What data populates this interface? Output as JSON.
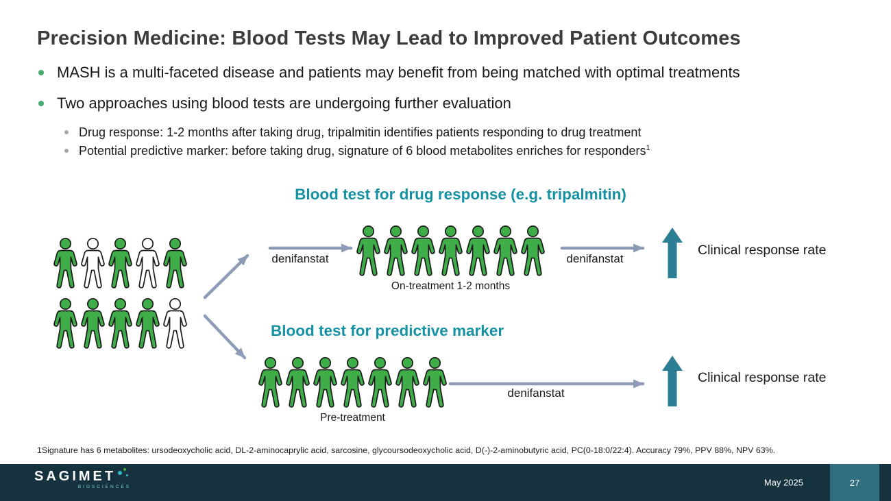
{
  "slide": {
    "title": "Precision Medicine: Blood Tests May Lead to Improved Patient Outcomes",
    "bullets": [
      {
        "text": "MASH is a multi-faceted disease and patients may benefit from being matched with optimal treatments"
      },
      {
        "text": "Two approaches using blood tests are undergoing further evaluation"
      }
    ],
    "sub_bullets": [
      {
        "text": "Drug response: 1-2 months after taking drug, tripalmitin identifies patients responding to drug treatment",
        "sup": ""
      },
      {
        "text": "Potential predictive marker: before taking drug, signature of 6 blood metabolites enriches for responders",
        "sup": "1"
      }
    ]
  },
  "diagram": {
    "heading_top": "Blood test for drug response (e.g. tripalmitin)",
    "heading_bottom": "Blood test for predictive marker",
    "arrow_label_left": "denifanstat",
    "arrow_label_right": "denifanstat",
    "arrow_label_long": "denifanstat",
    "caption_on_treatment": "On-treatment 1-2 months",
    "caption_pre_treatment": "Pre-treatment",
    "outcome_top": "Clinical response rate",
    "outcome_bottom": "Clinical response rate",
    "people": {
      "mixed_row_1": [
        "green",
        "white",
        "green",
        "white",
        "green"
      ],
      "mixed_row_2": [
        "green",
        "green",
        "green",
        "green",
        "white"
      ],
      "on_treatment": [
        "green",
        "green",
        "green",
        "green",
        "green",
        "green",
        "green"
      ],
      "pre_treatment": [
        "green",
        "green",
        "green",
        "green",
        "green",
        "green",
        "green"
      ]
    }
  },
  "footnote": "1Signature has 6 metabolites: ursodeoxycholic acid, DL-2-aminocaprylic acid, sarcosine, glycoursodeoxycholic acid, D(-)-2-aminobutyric acid, PC(0-18:0/22:4). Accuracy 79%, PPV 88%, NPV 63%.",
  "footer": {
    "logo_name": "SAGIMET",
    "logo_sub": "BIOSCIENCES",
    "date": "May 2025",
    "page": "27"
  },
  "colors": {
    "title_text": "#3C3C3C",
    "body_text": "#191919",
    "teal_heading": "#1591A4",
    "green_person": "#3FAE49",
    "person_outline": "#1B1B1B",
    "bullet_accent": "#48A86D",
    "arrow_gray": "#8E9CB8",
    "arrow_teal": "#2B7E93",
    "footer_bg": "#16323E",
    "page_box_bg": "#2F6F80",
    "logo_dot_teal": "#35B6C9"
  }
}
